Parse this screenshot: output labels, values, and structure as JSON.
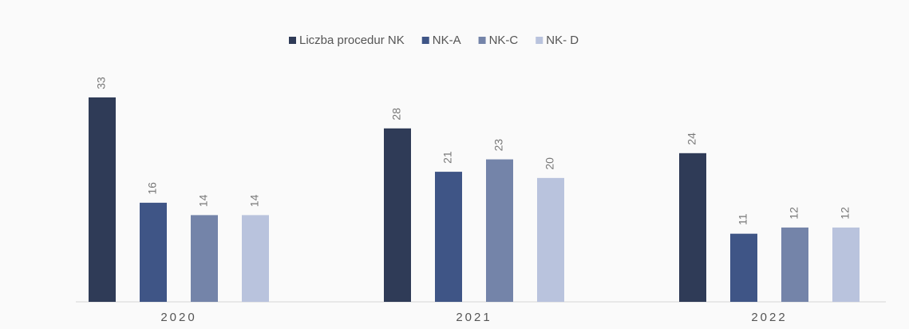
{
  "chart_data": {
    "type": "bar",
    "categories": [
      "2020",
      "2021",
      "2022"
    ],
    "series": [
      {
        "name": "Liczba procedur NK",
        "color": "#2f3b57",
        "values": [
          33,
          28,
          24
        ]
      },
      {
        "name": "NK-A",
        "color": "#3f5586",
        "values": [
          16,
          21,
          11
        ]
      },
      {
        "name": "NK-C",
        "color": "#7484a9",
        "values": [
          14,
          23,
          12
        ]
      },
      {
        "name": "NK- D",
        "color": "#b9c3dd",
        "values": [
          14,
          20,
          12
        ]
      }
    ],
    "legend": "top"
  }
}
